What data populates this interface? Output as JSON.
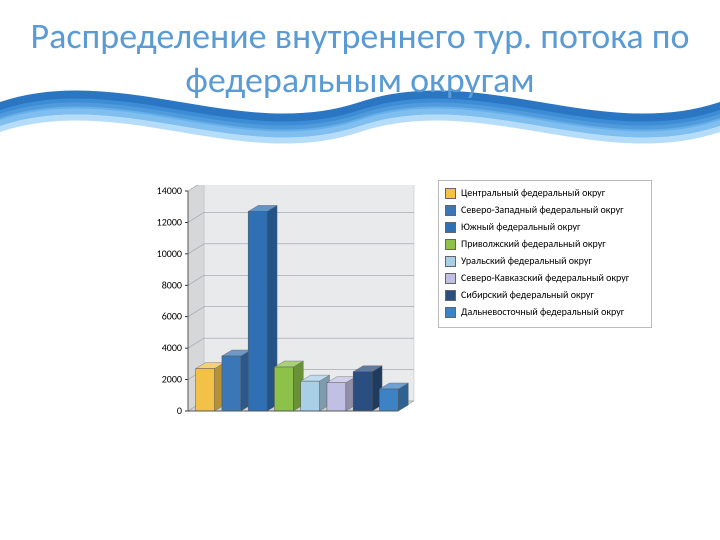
{
  "title": "Распределение внутреннего тур. потока по федеральным округам",
  "title_color": "#5b9bd5",
  "title_fontsize": 36,
  "background_color": "#ffffff",
  "wave_colors": [
    "#1f6fbf",
    "#3e90d8",
    "#69b3ec",
    "#a3d4f7"
  ],
  "chart": {
    "type": "bar",
    "style": "3d",
    "ylim": [
      0,
      14000
    ],
    "ytick_step": 2000,
    "yticks": [
      "0",
      "2000",
      "4000",
      "6000",
      "8000",
      "10000",
      "12000",
      "14000"
    ],
    "grid_color": "#9aa0a6",
    "floor_color": "#cfd3d7",
    "wall_color": "#e8eaec",
    "tick_font_size": 10,
    "series": [
      {
        "label": "Центральный федеральный округ",
        "value": 2700,
        "color": "#f2c148"
      },
      {
        "label": "Северо-Западный федеральный округ",
        "value": 3500,
        "color": "#3b77b6"
      },
      {
        "label": "Южный федеральный округ",
        "value": 12700,
        "color": "#2f6fb4"
      },
      {
        "label": "Приволжский федеральный округ",
        "value": 2800,
        "color": "#8cc24a"
      },
      {
        "label": "Уральский федеральный округ",
        "value": 1900,
        "color": "#a9cfe6"
      },
      {
        "label": "Северо-Кавказский федеральный округ",
        "value": 1800,
        "color": "#c2bfe4"
      },
      {
        "label": "Сибирский федеральный округ",
        "value": 2500,
        "color": "#294e7f"
      },
      {
        "label": "Дальневосточный федеральный округ",
        "value": 1400,
        "color": "#3d82c4"
      }
    ]
  }
}
